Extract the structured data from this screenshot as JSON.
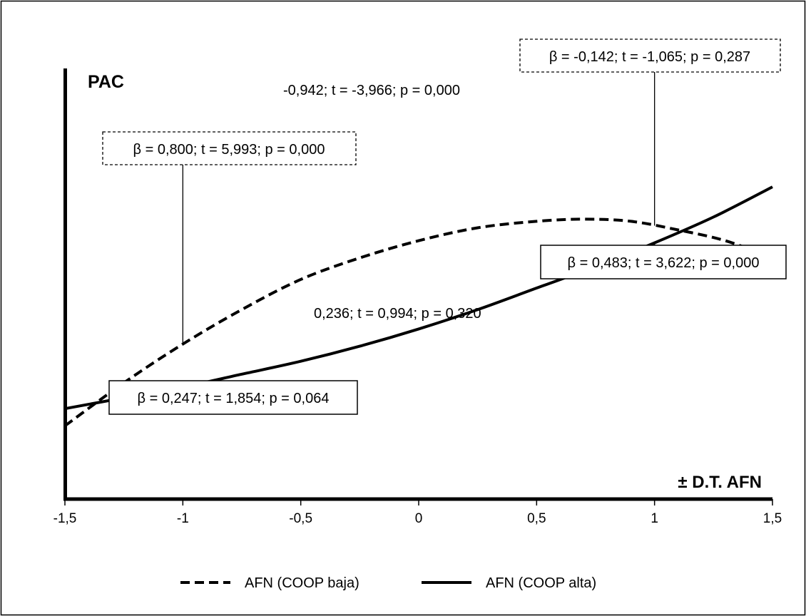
{
  "chart_data": {
    "type": "line",
    "title": "",
    "ylabel": "PAC",
    "xlabel": "± D.T. AFN",
    "xlim": [
      -1.5,
      1.5
    ],
    "x_ticks": [
      "-1,5",
      "-1",
      "-0,5",
      "0",
      "0,5",
      "1",
      "1,5"
    ],
    "x_tick_values": [
      -1.5,
      -1,
      -0.5,
      0,
      0.5,
      1,
      1.5
    ],
    "grid": false,
    "legend_position": "bottom",
    "colors": {
      "lines": "#000000",
      "background": "#ffffff"
    },
    "series": [
      {
        "name": "AFN (COOP baja)",
        "style": "dashed",
        "x": [
          -1.5,
          -1.25,
          -1.0,
          -0.75,
          -0.5,
          -0.25,
          0.0,
          0.25,
          0.5,
          0.7,
          0.9,
          1.1,
          1.3,
          1.5
        ],
        "y": [
          0.17,
          0.27,
          0.36,
          0.44,
          0.51,
          0.56,
          0.6,
          0.63,
          0.645,
          0.65,
          0.645,
          0.625,
          0.6,
          0.56
        ]
      },
      {
        "name": "AFN (COOP alta)",
        "style": "solid",
        "x": [
          -1.5,
          -1.25,
          -1.0,
          -0.75,
          -0.5,
          -0.25,
          0.0,
          0.25,
          0.5,
          0.75,
          1.0,
          1.25,
          1.5
        ],
        "y": [
          0.21,
          0.235,
          0.26,
          0.29,
          0.32,
          0.355,
          0.395,
          0.44,
          0.49,
          0.54,
          0.595,
          0.655,
          0.725
        ]
      }
    ],
    "annotations": [
      {
        "id": "baja_left",
        "text": "β = 0,800; t = 5,993; p = 0,000",
        "border": "dashed",
        "at_x": -1.0,
        "series": 0
      },
      {
        "id": "baja_right",
        "text": "β = -0,142; t = -1,065; p = 0,287",
        "border": "dashed",
        "at_x": 1.0,
        "series": 0
      },
      {
        "id": "alta_right",
        "text": "β = 0,483; t = 3,622; p = 0,000",
        "border": "solid",
        "at_x": 1.0,
        "series": 1
      },
      {
        "id": "alta_left",
        "text": "β = 0,247; t = 1,854; p = 0,064",
        "border": "solid",
        "at_x": -1.0,
        "series": 1
      },
      {
        "id": "quad_top",
        "text": "-0,942; t = -3,966; p = 0,000",
        "border": "none"
      },
      {
        "id": "quad_bottom",
        "text": "0,236; t = 0,994; p = 0,320",
        "border": "none"
      }
    ]
  }
}
